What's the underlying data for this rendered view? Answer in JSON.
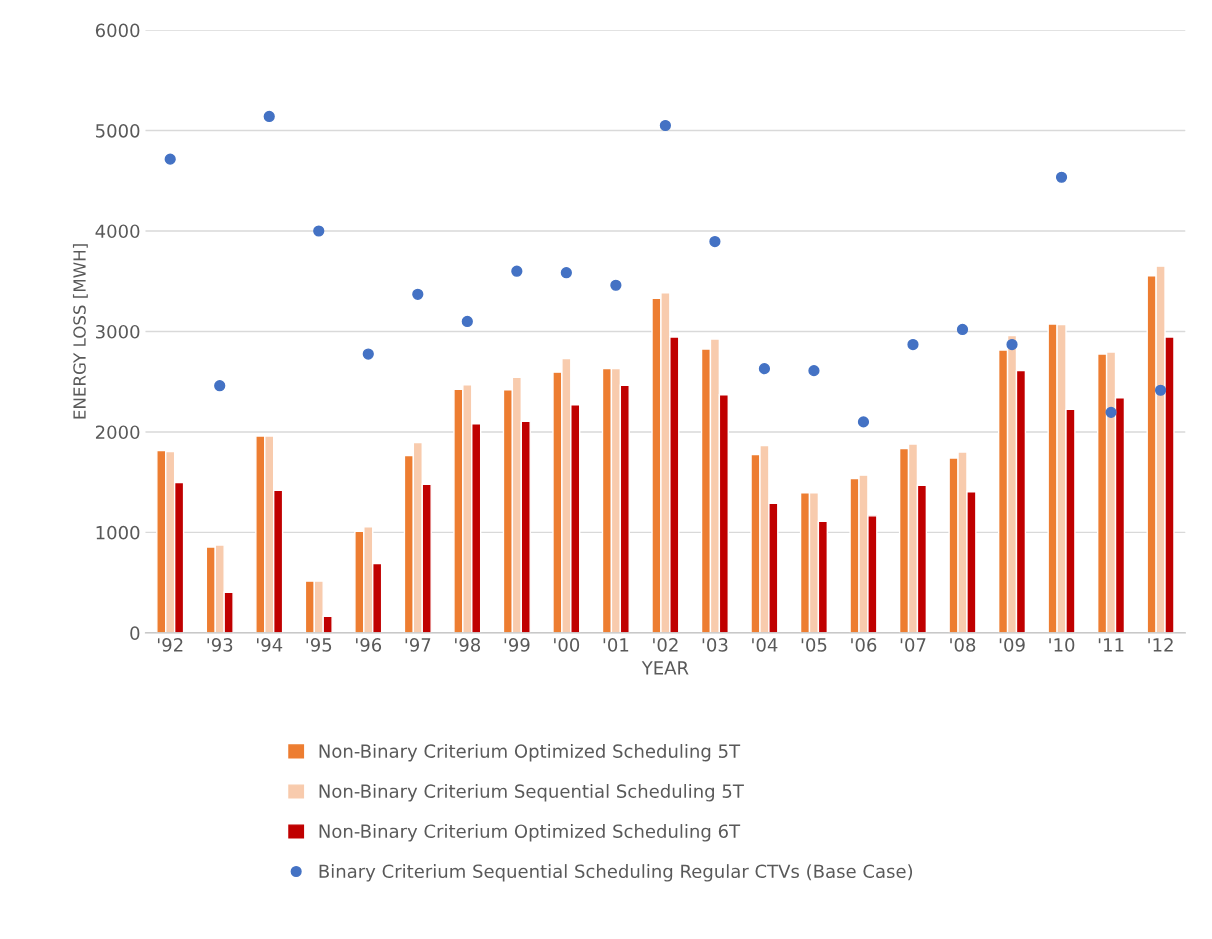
{
  "chart_data": {
    "type": "bar",
    "xlabel": "YEAR",
    "ylabel": "ENERGY LOSS [MWH]",
    "categories": [
      "'92",
      "'93",
      "'94",
      "'95",
      "'96",
      "'97",
      "'98",
      "'99",
      "'00",
      "'01",
      "'02",
      "'03",
      "'04",
      "'05",
      "'06",
      "'07",
      "'08",
      "'09",
      "'10",
      "'11",
      "'12"
    ],
    "series": [
      {
        "name": "Non-Binary Criterium Optimized Scheduling 5T",
        "color": "#ed7d31",
        "values": [
          1815,
          855,
          1960,
          515,
          1010,
          1765,
          2425,
          2420,
          2595,
          2630,
          3330,
          2825,
          1775,
          1395,
          1535,
          1835,
          1740,
          2815,
          3075,
          2775,
          3555
        ]
      },
      {
        "name": "Non-Binary Criterium Sequential Scheduling 5T",
        "color": "#f8cbad",
        "values": [
          1805,
          875,
          1960,
          515,
          1055,
          1895,
          2470,
          2545,
          2730,
          2630,
          3385,
          2925,
          1865,
          1395,
          1570,
          1880,
          1800,
          2960,
          3070,
          2795,
          3650
        ]
      },
      {
        "name": "Non-Binary Criterium Optimized Scheduling 6T",
        "color": "#c00000",
        "values": [
          1495,
          405,
          1420,
          165,
          690,
          1480,
          2080,
          2105,
          2270,
          2465,
          2945,
          2370,
          1290,
          1110,
          1165,
          1470,
          1405,
          2610,
          2225,
          2340,
          2945
        ]
      },
      {
        "name": "Binary Criterium Sequential Scheduling Regular CTVs (Base Case)",
        "type": "scatter",
        "marker": "circle",
        "color": "#4472c4",
        "values": [
          4715,
          2460,
          5140,
          4000,
          2775,
          3370,
          3100,
          3600,
          3585,
          3460,
          5050,
          3895,
          2630,
          2610,
          2100,
          2870,
          3020,
          2870,
          4535,
          2195,
          2415
        ]
      }
    ],
    "ylim": [
      0,
      6000
    ],
    "yticks": [
      0,
      1000,
      2000,
      3000,
      4000,
      5000,
      6000
    ],
    "grid": "y",
    "legend": "bottom"
  }
}
